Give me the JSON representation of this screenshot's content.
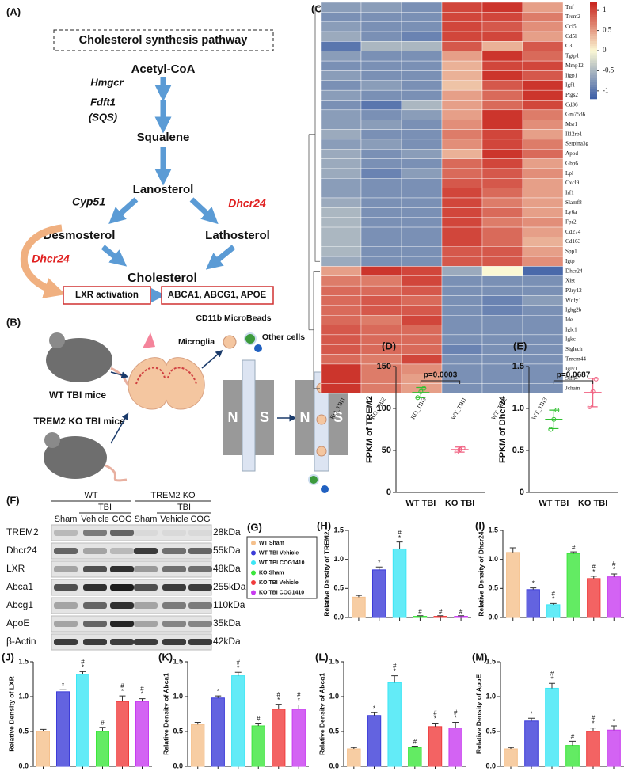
{
  "panel_a": {
    "label": "(A)",
    "title": "Cholesterol synthesis pathway",
    "acetyl_coa": "Acetyl-CoA",
    "hmgcr": "Hmgcr",
    "fdft1": [
      "Fdft1",
      "(SQS)"
    ],
    "squalene": "Squalene",
    "lanosterol": "Lanosterol",
    "cyp51": "Cyp51",
    "dhcr24_right": "Dhcr24",
    "desmosterol": "Desmosterol",
    "lathosterol": "Lathosterol",
    "dhcr24_left": "Dhcr24",
    "cholesterol": "Cholesterol",
    "lxr": "LXR activation",
    "targets": "ABCA1, ABCG1, APOE"
  },
  "panel_b": {
    "label": "(B)",
    "wt": "WT TBI mice",
    "ko": "TREM2 KO TBI mice",
    "beads": "CD11b MicroBeads",
    "microglia": "Microglia",
    "other": "Other cells",
    "poles": [
      "N",
      "S",
      "N",
      "S"
    ]
  },
  "panel_f": {
    "label": "(F)",
    "groups": [
      "WT",
      "TREM2 KO"
    ],
    "tbi": [
      "TBI",
      "TBI"
    ],
    "lanes": [
      "Sham",
      "Vehicle",
      "COG",
      "Sham",
      "Vehicle",
      "COG"
    ],
    "proteins": [
      "TREM2",
      "Dhcr24",
      "LXR",
      "Abca1",
      "Abcg1",
      "ApoE",
      "β-Actin"
    ],
    "sizes": [
      "28kDa",
      "55kDa",
      "48kDa",
      "255kDa",
      "110kDa",
      "35kDa",
      "42kDa"
    ]
  },
  "panel_g": {
    "label": "(G)",
    "names": [
      "WT Sham",
      "WT TBI Vehicle",
      "WT TBI COG1410",
      "KO Sham",
      "KO TBI Vehicle",
      "KO TBI COG1410"
    ],
    "colors": [
      "#f5c08c",
      "#3c3cd8",
      "#3ce6f5",
      "#3ce63c",
      "#f03c3c",
      "#c83cf0"
    ]
  },
  "chart_data": [
    {
      "type": "heatmap",
      "label": "(C)",
      "rows": [
        "Tnf",
        "Trem2",
        "Ccl5",
        "Cd5l",
        "C3",
        "Tgtp1",
        "Mmp12",
        "Iigp1",
        "Igf1",
        "Ptgs2",
        "Cd36",
        "Gm7536",
        "Msr1",
        "Il12rb1",
        "Serpina3g",
        "Apod",
        "Gbp6",
        "Lpl",
        "Cxcl9",
        "Irf1",
        "Slamf8",
        "Ly6a",
        "Fpr2",
        "Cd274",
        "Cd163",
        "Spp1",
        "Igtp",
        "Dhcr24",
        "Xist",
        "P2ry12",
        "Wdfy1",
        "Ighg2b",
        "Ide",
        "Iglc1",
        "Igkc",
        "Siglech",
        "Tmem44",
        "Iglv1",
        "Slfn4",
        "Jchain"
      ],
      "columns": [
        "KO_TBI1",
        "KO_TBI2",
        "KO_TBI3",
        "WT_TBI1",
        "WT_TBI2",
        "WT_TBI3"
      ],
      "values": [
        [
          -0.7,
          -0.7,
          -0.8,
          1.0,
          1.1,
          0.5
        ],
        [
          -0.8,
          -0.8,
          -0.8,
          1.0,
          1.0,
          0.7
        ],
        [
          -0.7,
          -0.8,
          -0.8,
          1.0,
          0.9,
          0.6
        ],
        [
          -0.6,
          -0.8,
          -0.9,
          1.0,
          1.0,
          0.5
        ],
        [
          -1.0,
          -0.5,
          -0.5,
          0.9,
          0.4,
          0.9
        ],
        [
          -0.7,
          -0.8,
          -0.8,
          0.5,
          1.1,
          0.8
        ],
        [
          -0.8,
          -0.8,
          -0.8,
          0.4,
          1.0,
          1.0
        ],
        [
          -0.7,
          -0.8,
          -0.8,
          0.4,
          1.1,
          0.9
        ],
        [
          -0.8,
          -0.7,
          -0.8,
          0.3,
          0.9,
          1.1
        ],
        [
          -0.7,
          -0.8,
          -0.8,
          0.5,
          0.8,
          1.1
        ],
        [
          -0.8,
          -1.0,
          -0.5,
          0.5,
          0.8,
          1.0
        ],
        [
          -0.7,
          -0.8,
          -0.7,
          0.5,
          1.1,
          0.7
        ],
        [
          -0.7,
          -0.7,
          -0.8,
          0.6,
          1.1,
          0.6
        ],
        [
          -0.6,
          -0.8,
          -0.8,
          0.7,
          1.0,
          0.5
        ],
        [
          -0.7,
          -0.7,
          -0.8,
          0.6,
          1.0,
          0.7
        ],
        [
          -0.6,
          -0.8,
          -0.7,
          0.4,
          1.1,
          0.8
        ],
        [
          -0.6,
          -0.8,
          -0.8,
          0.8,
          1.0,
          0.5
        ],
        [
          -0.6,
          -0.9,
          -0.7,
          0.8,
          0.9,
          0.6
        ],
        [
          -0.7,
          -0.8,
          -0.8,
          0.9,
          0.9,
          0.5
        ],
        [
          -0.7,
          -0.8,
          -0.8,
          1.0,
          0.8,
          0.5
        ],
        [
          -0.6,
          -0.8,
          -0.8,
          1.0,
          0.7,
          0.5
        ],
        [
          -0.5,
          -0.8,
          -0.8,
          1.0,
          0.8,
          0.5
        ],
        [
          -0.5,
          -0.8,
          -0.8,
          1.0,
          0.7,
          0.6
        ],
        [
          -0.5,
          -0.8,
          -0.8,
          1.0,
          0.8,
          0.5
        ],
        [
          -0.5,
          -0.8,
          -0.8,
          1.0,
          0.8,
          0.4
        ],
        [
          -0.5,
          -0.8,
          -0.8,
          0.9,
          0.9,
          0.5
        ],
        [
          -0.6,
          -0.8,
          -0.8,
          0.9,
          0.9,
          0.6
        ],
        [
          0.5,
          1.1,
          1.0,
          -0.6,
          0.0,
          -1.1
        ],
        [
          0.7,
          0.7,
          1.0,
          -0.8,
          -0.8,
          -0.8
        ],
        [
          0.8,
          0.8,
          0.9,
          -0.8,
          -0.8,
          -0.8
        ],
        [
          0.8,
          0.9,
          0.8,
          -0.8,
          -0.9,
          -0.7
        ],
        [
          0.8,
          0.9,
          0.9,
          -0.8,
          -0.9,
          -0.8
        ],
        [
          0.8,
          0.7,
          1.0,
          -0.8,
          -0.8,
          -0.8
        ],
        [
          0.9,
          0.8,
          0.8,
          -0.8,
          -0.8,
          -0.8
        ],
        [
          0.9,
          0.8,
          0.8,
          -0.8,
          -0.8,
          -0.8
        ],
        [
          0.9,
          0.8,
          0.8,
          -0.9,
          -0.8,
          -0.8
        ],
        [
          0.8,
          0.7,
          1.0,
          -0.8,
          -0.8,
          -0.8
        ],
        [
          1.1,
          0.7,
          0.6,
          -0.8,
          -0.8,
          -0.8
        ],
        [
          1.1,
          0.7,
          0.5,
          -0.8,
          -0.8,
          -0.8
        ],
        [
          1.1,
          0.7,
          0.5,
          -0.8,
          -0.8,
          -0.8
        ]
      ],
      "zlim": [
        -1.2,
        1.2
      ],
      "ticks": [
        1,
        0.5,
        0,
        -0.5,
        -1
      ],
      "colors": [
        "#3a5ca6",
        "#fbf8d4",
        "#c8231d"
      ]
    },
    {
      "type": "dot",
      "label": "(D)",
      "ylabel": "FPKM of TREM2",
      "categories": [
        "WT TBI",
        "KO TBI"
      ],
      "points": [
        [
          113,
          120,
          124
        ],
        [
          48,
          51,
          53
        ]
      ],
      "means": [
        119,
        51
      ],
      "sd": [
        6,
        3
      ],
      "colors": [
        "#30c030",
        "#f06080"
      ],
      "ylim": [
        0,
        150
      ],
      "yticks": [
        0,
        50,
        100,
        150
      ],
      "annotation": "p=0.0003"
    },
    {
      "type": "dot",
      "label": "(E)",
      "ylabel": "FPKM of Dhcr24",
      "categories": [
        "WT TBI",
        "KO TBI"
      ],
      "points": [
        [
          0.75,
          0.87,
          0.98
        ],
        [
          1.02,
          1.2,
          1.35
        ]
      ],
      "means": [
        0.87,
        1.19
      ],
      "sd": [
        0.11,
        0.17
      ],
      "colors": [
        "#30c030",
        "#f06080"
      ],
      "ylim": [
        0,
        1.5
      ],
      "yticks": [
        0,
        0.5,
        {
          "value": 1,
          "label": "1.0"
        },
        1.5
      ],
      "annotation": "p=0.0687"
    },
    {
      "type": "bar",
      "label": "(H)",
      "ylabel": "Relative Density of TREM2",
      "values": [
        0.35,
        0.82,
        1.18,
        0.02,
        0.02,
        0.02
      ],
      "errors": [
        0.03,
        0.05,
        0.12,
        0.01,
        0.01,
        0.01
      ],
      "marks": [
        [],
        [
          "*"
        ],
        [
          "*",
          "#"
        ],
        [
          "#"
        ],
        [
          "#"
        ],
        [
          "#"
        ]
      ],
      "ylim": [
        0,
        1.5
      ],
      "yticks": [
        {
          "value": 0,
          "label": "0.0"
        },
        0.5,
        {
          "value": 1,
          "label": "1.0"
        },
        1.5
      ]
    },
    {
      "type": "bar",
      "label": "(I)",
      "ylabel": "Relative Density of Dhcr24",
      "values": [
        1.12,
        0.48,
        0.22,
        1.1,
        0.67,
        0.7
      ],
      "errors": [
        0.08,
        0.03,
        0.02,
        0.03,
        0.04,
        0.05
      ],
      "marks": [
        [],
        [
          "*"
        ],
        [
          "*",
          "#"
        ],
        [
          "#"
        ],
        [
          "*",
          "#"
        ],
        [
          "*",
          "#"
        ]
      ],
      "ylim": [
        0,
        1.5
      ],
      "yticks": [
        {
          "value": 0,
          "label": "0.0"
        },
        0.5,
        {
          "value": 1,
          "label": "1.0"
        },
        1.5
      ]
    },
    {
      "type": "bar",
      "label": "(J)",
      "ylabel": "Relative Density of LXR",
      "values": [
        0.5,
        1.07,
        1.32,
        0.5,
        0.93,
        0.93
      ],
      "errors": [
        0.03,
        0.03,
        0.04,
        0.06,
        0.08,
        0.04
      ],
      "marks": [
        [],
        [
          "*"
        ],
        [
          "*",
          "#"
        ],
        [
          "#"
        ],
        [
          "*",
          "#"
        ],
        [
          "*",
          "#"
        ]
      ],
      "ylim": [
        0,
        1.5
      ],
      "yticks": [
        {
          "value": 0,
          "label": "0.0"
        },
        0.5,
        {
          "value": 1,
          "label": "1.0"
        },
        1.5
      ]
    },
    {
      "type": "bar",
      "label": "(K)",
      "ylabel": "Relative Density of Abca1",
      "values": [
        0.6,
        0.98,
        1.3,
        0.58,
        0.82,
        0.82
      ],
      "errors": [
        0.03,
        0.03,
        0.05,
        0.04,
        0.07,
        0.06
      ],
      "marks": [
        [],
        [
          "*"
        ],
        [
          "*",
          "#"
        ],
        [
          "#"
        ],
        [
          "*",
          "#"
        ],
        [
          "*",
          "#"
        ]
      ],
      "ylim": [
        0,
        1.5
      ],
      "yticks": [
        {
          "value": 0,
          "label": "0.0"
        },
        0.5,
        {
          "value": 1,
          "label": "1.0"
        },
        1.5
      ]
    },
    {
      "type": "bar",
      "label": "(L)",
      "ylabel": "Relative Density of Abcg1",
      "values": [
        0.25,
        0.73,
        1.2,
        0.27,
        0.57,
        0.55
      ],
      "errors": [
        0.02,
        0.04,
        0.1,
        0.02,
        0.05,
        0.08
      ],
      "marks": [
        [],
        [
          "*"
        ],
        [
          "*",
          "#"
        ],
        [
          "#"
        ],
        [
          "*",
          "#"
        ],
        [
          "*",
          "#"
        ]
      ],
      "ylim": [
        0,
        1.5
      ],
      "yticks": [
        {
          "value": 0,
          "label": "0.0"
        },
        0.5,
        {
          "value": 1,
          "label": "1.0"
        },
        1.5
      ]
    },
    {
      "type": "bar",
      "label": "(M)",
      "ylabel": "Relative Density of ApoE",
      "values": [
        0.25,
        0.65,
        1.12,
        0.3,
        0.5,
        0.52
      ],
      "errors": [
        0.02,
        0.04,
        0.07,
        0.06,
        0.05,
        0.06
      ],
      "marks": [
        [],
        [
          "*"
        ],
        [
          "*",
          "#"
        ],
        [
          "#"
        ],
        [
          "*",
          "#"
        ],
        [
          "*"
        ]
      ],
      "ylim": [
        0,
        1.5
      ],
      "yticks": [
        {
          "value": 0,
          "label": "0.0"
        },
        0.5,
        {
          "value": 1,
          "label": "1.0"
        },
        1.5
      ]
    }
  ]
}
